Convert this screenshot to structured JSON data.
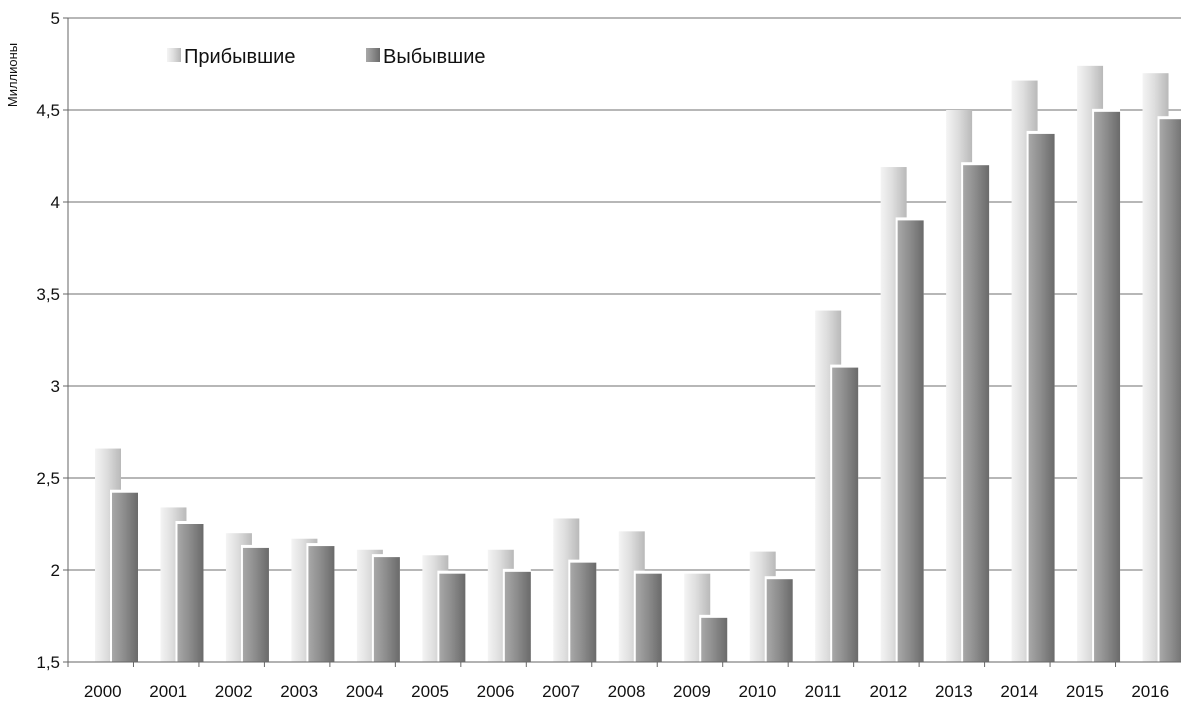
{
  "chart_data": {
    "type": "bar",
    "ylabel": "Миллионы",
    "ylim": [
      1.5,
      5
    ],
    "y_ticks": [
      "1,5",
      "2",
      "2,5",
      "3",
      "3,5",
      "4",
      "4,5",
      "5"
    ],
    "y_tick_values": [
      1.5,
      2,
      2.5,
      3,
      3.5,
      4,
      4.5,
      5
    ],
    "categories": [
      "2000",
      "2001",
      "2002",
      "2003",
      "2004",
      "2005",
      "2006",
      "2007",
      "2008",
      "2009",
      "2010",
      "2011",
      "2012",
      "2013",
      "2014",
      "2015",
      "2016"
    ],
    "series": [
      {
        "name": "Прибывшие",
        "values": [
          2.66,
          2.34,
          2.2,
          2.17,
          2.11,
          2.08,
          2.11,
          2.28,
          2.21,
          1.98,
          2.1,
          3.41,
          4.19,
          4.5,
          4.66,
          4.74,
          4.7
        ]
      },
      {
        "name": "Выбывшие",
        "values": [
          2.42,
          2.25,
          2.12,
          2.13,
          2.07,
          1.98,
          1.99,
          2.04,
          1.98,
          1.74,
          1.95,
          3.1,
          3.9,
          4.2,
          4.37,
          4.49,
          4.45
        ]
      }
    ],
    "grid": true,
    "legend_position": "top-left",
    "colors": {
      "arrived": "#d2d2d2",
      "departed": "#8a8a8a",
      "grid": "#8c8c8c"
    }
  }
}
